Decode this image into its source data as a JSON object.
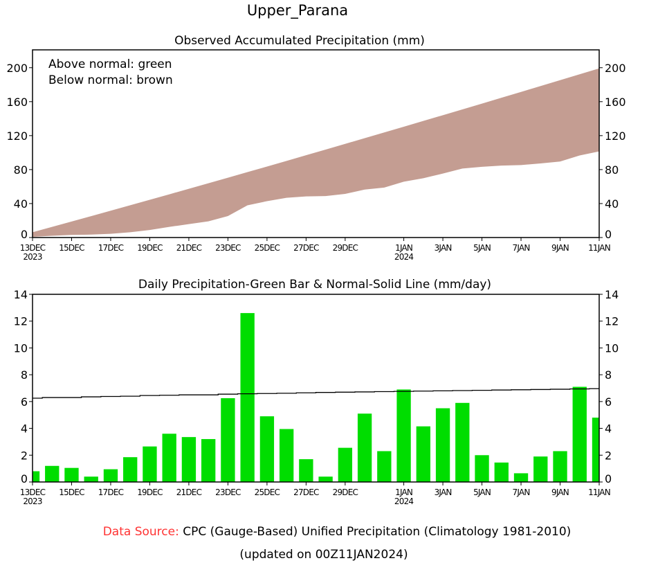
{
  "chart_data": [
    {
      "type": "area",
      "suptitle": "Upper_Parana",
      "title": "Observed Accumulated Precipitation (mm)",
      "legend_lines": [
        "Above normal: green",
        "Below normal: brown"
      ],
      "legend_placement": "top-left",
      "colors": {
        "below": "#c49d92",
        "above": "#00dd00"
      },
      "ylim": [
        0,
        221
      ],
      "yticks": [
        0,
        40,
        80,
        120,
        160,
        200
      ],
      "dates": [
        "13DEC",
        "14DEC",
        "15DEC",
        "16DEC",
        "17DEC",
        "18DEC",
        "19DEC",
        "20DEC",
        "21DEC",
        "22DEC",
        "23DEC",
        "24DEC",
        "25DEC",
        "26DEC",
        "27DEC",
        "28DEC",
        "29DEC",
        "30DEC",
        "31DEC",
        "1JAN",
        "2JAN",
        "3JAN",
        "4JAN",
        "5JAN",
        "6JAN",
        "7JAN",
        "8JAN",
        "9JAN",
        "10JAN",
        "11JAN"
      ],
      "series": [
        {
          "name": "Normal accumulated",
          "values": [
            6.25,
            12.55,
            18.85,
            25.2,
            31.58,
            37.98,
            44.43,
            50.9,
            57.4,
            63.9,
            70.45,
            77.03,
            83.63,
            90.25,
            96.9,
            103.58,
            110.28,
            117.0,
            123.74,
            130.5,
            137.28,
            144.08,
            150.9,
            157.74,
            164.6,
            171.48,
            178.38,
            185.3,
            192.24,
            199.2
          ]
        },
        {
          "name": "Observed accumulated",
          "values": [
            0.8,
            2.0,
            3.05,
            3.45,
            4.4,
            6.25,
            8.9,
            12.5,
            15.85,
            19.05,
            25.3,
            37.9,
            42.8,
            46.75,
            48.45,
            48.85,
            51.4,
            56.5,
            58.8,
            65.7,
            69.85,
            75.35,
            81.25,
            83.25,
            84.7,
            85.35,
            87.25,
            89.55,
            96.65,
            101.45
          ]
        }
      ]
    },
    {
      "type": "bar",
      "title": "Daily Precipitation-Green Bar & Normal-Solid Line (mm/day)",
      "ylim": [
        0,
        14
      ],
      "yticks": [
        0,
        2,
        4,
        6,
        8,
        10,
        12,
        14
      ],
      "colors": {
        "bar": "#00dd00",
        "line": "#000000"
      },
      "series": [
        {
          "name": "Daily precipitation",
          "values": [
            0.8,
            1.2,
            1.05,
            0.4,
            0.95,
            1.85,
            2.65,
            3.6,
            3.35,
            3.2,
            6.25,
            12.6,
            4.9,
            3.95,
            1.7,
            0.4,
            2.55,
            5.1,
            2.3,
            6.9,
            4.15,
            5.5,
            5.9,
            2.0,
            1.45,
            0.65,
            1.9,
            2.3,
            7.1,
            4.8
          ]
        },
        {
          "name": "Normal",
          "values": [
            6.25,
            6.3,
            6.3,
            6.35,
            6.38,
            6.4,
            6.45,
            6.47,
            6.5,
            6.5,
            6.55,
            6.58,
            6.6,
            6.62,
            6.65,
            6.68,
            6.7,
            6.72,
            6.74,
            6.76,
            6.78,
            6.8,
            6.82,
            6.84,
            6.86,
            6.88,
            6.9,
            6.92,
            6.94,
            6.96
          ]
        }
      ]
    }
  ],
  "xticks": [
    {
      "day": 0,
      "label": "13DEC",
      "year": "2023"
    },
    {
      "day": 2,
      "label": "15DEC"
    },
    {
      "day": 4,
      "label": "17DEC"
    },
    {
      "day": 6,
      "label": "19DEC"
    },
    {
      "day": 8,
      "label": "21DEC"
    },
    {
      "day": 10,
      "label": "23DEC"
    },
    {
      "day": 12,
      "label": "25DEC"
    },
    {
      "day": 14,
      "label": "27DEC"
    },
    {
      "day": 16,
      "label": "29DEC"
    },
    {
      "day": 19,
      "label": "1JAN",
      "year": "2024"
    },
    {
      "day": 21,
      "label": "3JAN"
    },
    {
      "day": 23,
      "label": "5JAN"
    },
    {
      "day": 25,
      "label": "7JAN"
    },
    {
      "day": 27,
      "label": "9JAN"
    },
    {
      "day": 29,
      "label": "11JAN"
    }
  ],
  "footer": {
    "source_label": "Data Source:",
    "source_text": "CPC (Gauge-Based) Unified Precipitation (Climatology 1981-2010)",
    "updated": "(updated on 00Z11JAN2024)",
    "source_label_color": "#ff3333"
  }
}
